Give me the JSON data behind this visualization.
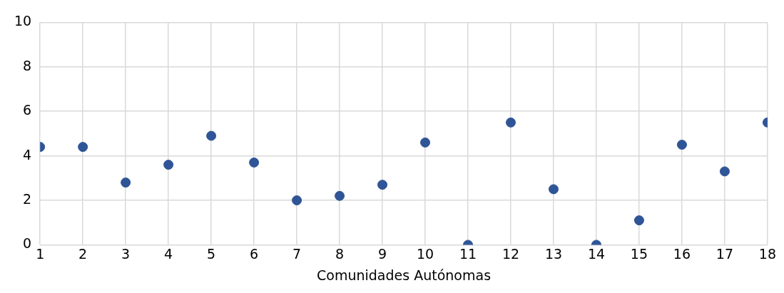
{
  "chart_data": {
    "type": "scatter",
    "xlabel": "Comunidades Autónomas",
    "x": [
      1,
      2,
      3,
      4,
      5,
      6,
      7,
      8,
      9,
      10,
      11,
      12,
      13,
      14,
      15,
      16,
      17,
      18
    ],
    "series": [
      {
        "color": "#2f5597",
        "values": [
          4.4,
          4.4,
          2.8,
          3.6,
          4.9,
          3.7,
          2.0,
          2.2,
          2.7,
          4.6,
          0,
          5.5,
          2.5,
          0,
          1.1,
          4.5,
          3.3,
          5.5
        ]
      }
    ],
    "xlim": [
      1,
      18
    ],
    "xticks": [
      1,
      2,
      3,
      4,
      5,
      6,
      7,
      8,
      9,
      10,
      11,
      12,
      13,
      14,
      15,
      16,
      17,
      18
    ],
    "ylim": [
      0,
      10
    ],
    "yticks": [
      0,
      2,
      4,
      6,
      8,
      10
    ],
    "grid": true,
    "marker": "circle"
  }
}
